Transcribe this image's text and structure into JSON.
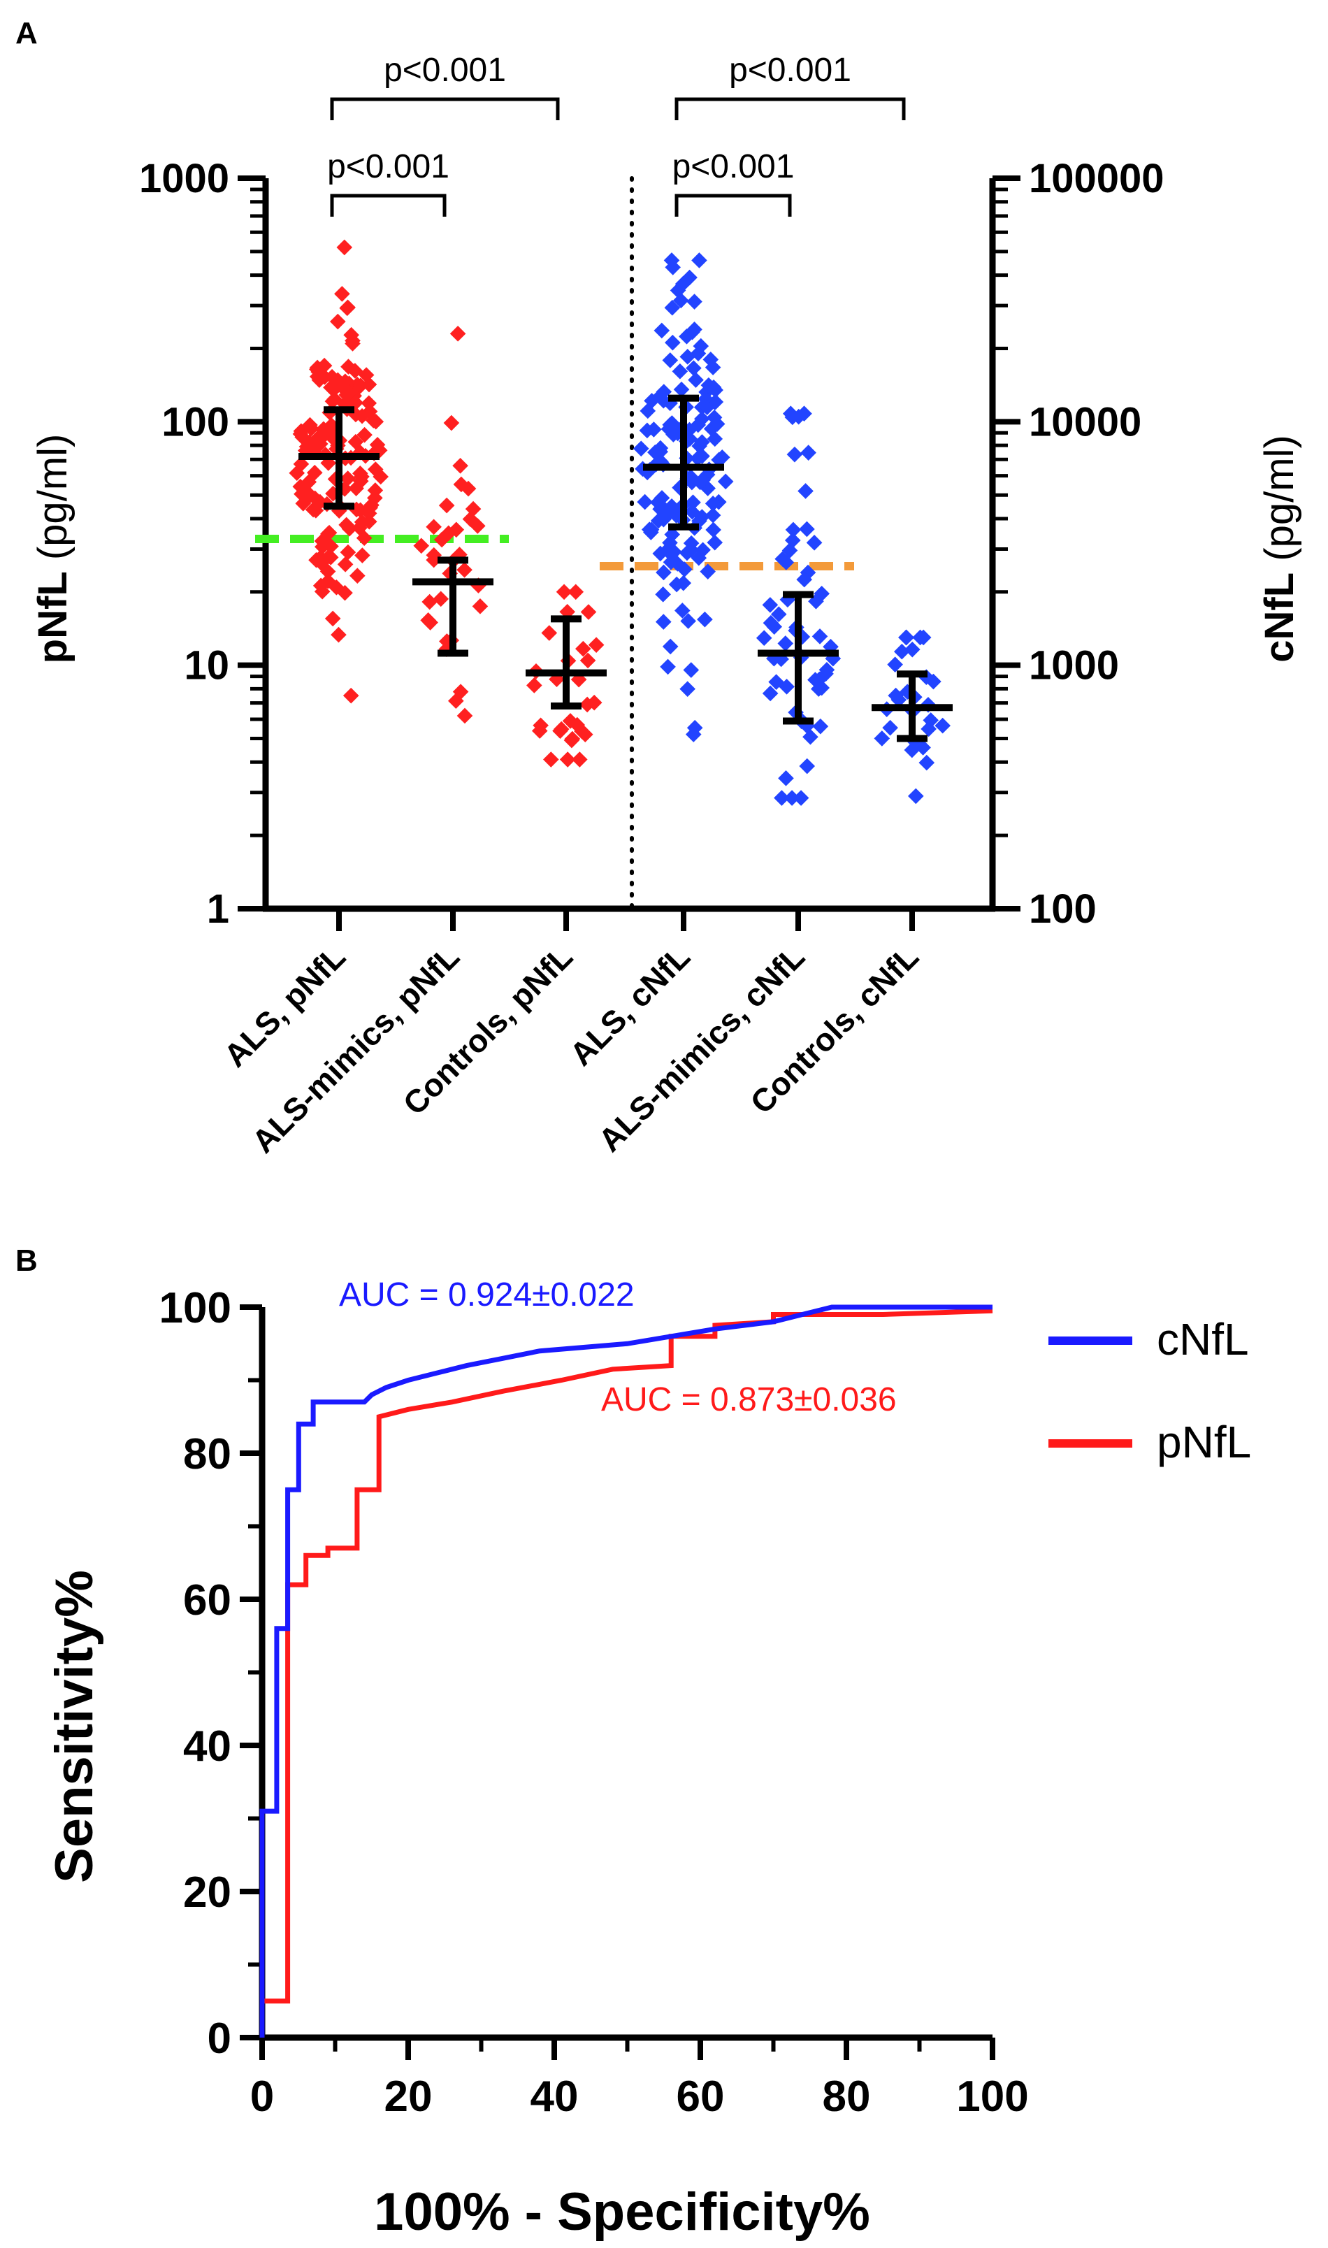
{
  "chart_data": [
    {
      "panel_label": "A",
      "type": "scatter",
      "subtype": "dot plot with median and interquartile range",
      "ylabel_left": {
        "bold": "pNfL",
        "unit": " (pg/ml)"
      },
      "ylabel_right": {
        "bold": "cNfL",
        "unit": " (pg/ml)"
      },
      "yscale": "log",
      "ylim_left": [
        1,
        1000
      ],
      "ylim_right": [
        100,
        100000
      ],
      "yticks_left": [
        "1",
        "10",
        "100",
        "1000"
      ],
      "yticks_right": [
        "100",
        "1000",
        "10000",
        "100000"
      ],
      "categories": [
        "ALS, pNfL",
        "ALS-mimics, pNfL",
        "Controls, pNfL",
        "ALS, cNfL",
        "ALS-mimics, cNfL",
        "Controls, cNfL"
      ],
      "groups": [
        {
          "name": "ALS, pNfL",
          "axis": "left",
          "color": "#ff2020",
          "n": 140,
          "median": 72,
          "q1": 45,
          "q3": 112,
          "min": 7.5,
          "max": 520
        },
        {
          "name": "ALS-mimics, pNfL",
          "axis": "left",
          "color": "#ff2020",
          "n": 32,
          "median": 22,
          "q1": 11.2,
          "q3": 27,
          "min": 6.2,
          "max": 230
        },
        {
          "name": "Controls, pNfL",
          "axis": "left",
          "color": "#ff2020",
          "n": 28,
          "median": 9.3,
          "q1": 6.8,
          "q3": 15.5,
          "min": 4.1,
          "max": 20
        },
        {
          "name": "ALS, cNfL",
          "axis": "right",
          "color": "#2244ff",
          "n": 140,
          "median": 6500,
          "q1": 3700,
          "q3": 12500,
          "min": 520,
          "max": 46000
        },
        {
          "name": "ALS-mimics, cNfL",
          "axis": "right",
          "color": "#2244ff",
          "n": 55,
          "median": 1120,
          "q1": 590,
          "q3": 1950,
          "min": 285,
          "max": 10800
        },
        {
          "name": "Controls, cNfL",
          "axis": "right",
          "color": "#2244ff",
          "n": 26,
          "median": 670,
          "q1": 500,
          "q3": 920,
          "min": 290,
          "max": 1300
        }
      ],
      "cutoffs": [
        {
          "axis": "left",
          "value": 33,
          "color": "#44ee22",
          "span": [
            "ALS, pNfL",
            "ALS-mimics, pNfL"
          ]
        },
        {
          "axis": "right",
          "value": 2550,
          "color": "#f39a3a",
          "span": [
            "ALS, cNfL",
            "ALS-mimics, cNfL"
          ]
        }
      ],
      "comparisons": [
        {
          "from": "ALS, pNfL",
          "to": "ALS-mimics, pNfL",
          "label": "p<0.001",
          "level": 1
        },
        {
          "from": "ALS, pNfL",
          "to": "Controls, pNfL",
          "label": "p<0.001",
          "level": 2
        },
        {
          "from": "ALS, cNfL",
          "to": "ALS-mimics, cNfL",
          "label": "p<0.001",
          "level": 1
        },
        {
          "from": "ALS, cNfL",
          "to": "Controls, cNfL",
          "label": "p<0.001",
          "level": 2
        }
      ]
    },
    {
      "panel_label": "B",
      "type": "line",
      "subtype": "ROC curve",
      "xlabel": "100% - Specificity%",
      "ylabel": "Sensitivity%",
      "xlim": [
        0,
        100
      ],
      "ylim": [
        0,
        100
      ],
      "xticks": [
        "0",
        "20",
        "40",
        "60",
        "80",
        "100"
      ],
      "yticks": [
        "0",
        "20",
        "40",
        "60",
        "80",
        "100"
      ],
      "legend_position": "right",
      "series": [
        {
          "name": "cNfL",
          "color": "#1a1aff",
          "auc_label": "AUC = 0.924±0.022",
          "points": [
            [
              0,
              0
            ],
            [
              0,
              31
            ],
            [
              2,
              31
            ],
            [
              2,
              56
            ],
            [
              3.5,
              56
            ],
            [
              3.5,
              75
            ],
            [
              5,
              75
            ],
            [
              5,
              84
            ],
            [
              7,
              84
            ],
            [
              7,
              87
            ],
            [
              14,
              87
            ],
            [
              15,
              88
            ],
            [
              17,
              89
            ],
            [
              20,
              90
            ],
            [
              24,
              91
            ],
            [
              28,
              92
            ],
            [
              33,
              93
            ],
            [
              38,
              94
            ],
            [
              44,
              94.5
            ],
            [
              50,
              95
            ],
            [
              56,
              96
            ],
            [
              62,
              97
            ],
            [
              70,
              98
            ],
            [
              78,
              100
            ],
            [
              100,
              100
            ]
          ]
        },
        {
          "name": "pNfL",
          "color": "#ff1a1a",
          "auc_label": "AUC = 0.873±0.036",
          "points": [
            [
              0,
              0
            ],
            [
              0,
              5
            ],
            [
              3.5,
              5
            ],
            [
              3.5,
              62
            ],
            [
              6,
              62
            ],
            [
              6,
              66
            ],
            [
              9,
              66
            ],
            [
              9,
              67
            ],
            [
              13,
              67
            ],
            [
              13,
              75
            ],
            [
              16,
              75
            ],
            [
              16,
              85
            ],
            [
              20,
              86
            ],
            [
              26,
              87
            ],
            [
              33,
              88.5
            ],
            [
              41,
              90
            ],
            [
              48,
              91.5
            ],
            [
              56,
              92
            ],
            [
              56,
              96
            ],
            [
              62,
              96
            ],
            [
              62,
              97.5
            ],
            [
              70,
              98
            ],
            [
              70,
              99
            ],
            [
              85,
              99
            ],
            [
              100,
              99.5
            ]
          ]
        }
      ]
    }
  ]
}
